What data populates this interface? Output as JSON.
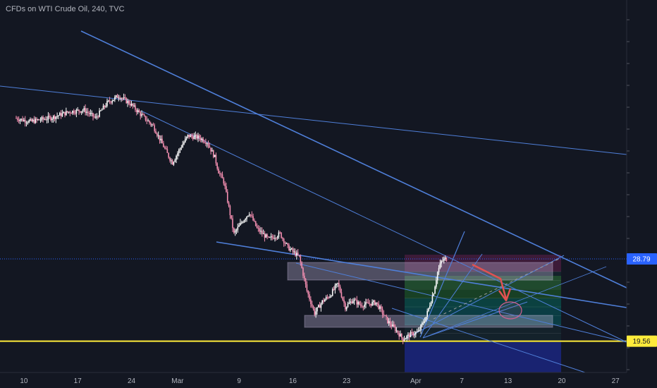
{
  "header": {
    "title": "CFDs on WTI Crude Oil, 240, TVC"
  },
  "colors": {
    "background": "#131722",
    "up_candle": "#ffffff",
    "down_candle": "#f48fb1",
    "trendline": "#4f7fd9",
    "support_line": "#ffeb3b",
    "current_price": "#2962ff",
    "arrow": "#e05252",
    "axis_text": "#b2b5be"
  },
  "price_tags": [
    {
      "label": "28.79",
      "value": 28.79,
      "bg": "#2962ff",
      "fg": "#ffffff"
    },
    {
      "label": "19.56",
      "value": 19.56,
      "bg": "#ffeb3b",
      "fg": "#131722"
    }
  ],
  "chart_data": {
    "type": "candlestick",
    "instrument": "CFDs on WTI Crude Oil",
    "interval": "240",
    "source": "TVC",
    "x_tick_labels": [
      "10",
      "17",
      "24",
      "Mar",
      "9",
      "16",
      "23",
      "Apr",
      "7",
      "13",
      "20",
      "27"
    ],
    "x_tick_days": [
      -19,
      -12,
      -5,
      1,
      9,
      16,
      23,
      32,
      38,
      44,
      51,
      58
    ],
    "ylim": [
      16.5,
      48.5
    ],
    "grid": false,
    "current_price": 28.79,
    "support_level": 19.56,
    "price_path": [
      [
        -20,
        44.6
      ],
      [
        -18,
        44.2
      ],
      [
        -15,
        44.7
      ],
      [
        -13,
        45.3
      ],
      [
        -11,
        45.5
      ],
      [
        -9.5,
        44.6
      ],
      [
        -8,
        46.3
      ],
      [
        -6.5,
        47.1
      ],
      [
        -5,
        46.2
      ],
      [
        -3.5,
        44.9
      ],
      [
        -2,
        43.7
      ],
      [
        -1,
        42.0
      ],
      [
        0,
        40.3
      ],
      [
        0.5,
        39.6
      ],
      [
        1.5,
        41.2
      ],
      [
        2.5,
        42.6
      ],
      [
        4,
        42.4
      ],
      [
        5,
        41.9
      ],
      [
        6,
        40.2
      ],
      [
        6.5,
        38.6
      ],
      [
        7.2,
        37.4
      ],
      [
        8.5,
        31.6
      ],
      [
        9.5,
        32.9
      ],
      [
        10.5,
        34.0
      ],
      [
        11.5,
        32.2
      ],
      [
        13,
        31.0
      ],
      [
        14.5,
        31.6
      ],
      [
        15.5,
        30.1
      ],
      [
        17,
        29.0
      ],
      [
        18,
        25.2
      ],
      [
        19,
        22.7
      ],
      [
        20,
        24.0
      ],
      [
        21,
        24.7
      ],
      [
        22,
        26.0
      ],
      [
        23,
        23.4
      ],
      [
        24,
        24.2
      ],
      [
        25,
        23.6
      ],
      [
        27,
        23.9
      ],
      [
        28.5,
        21.8
      ],
      [
        29.5,
        20.9
      ],
      [
        30.5,
        19.8
      ],
      [
        31.5,
        20.3
      ],
      [
        32.5,
        20.6
      ],
      [
        33.5,
        22.3
      ],
      [
        34.5,
        25.1
      ],
      [
        35,
        27.3
      ],
      [
        35.5,
        28.5
      ],
      [
        36,
        28.8
      ]
    ]
  }
}
